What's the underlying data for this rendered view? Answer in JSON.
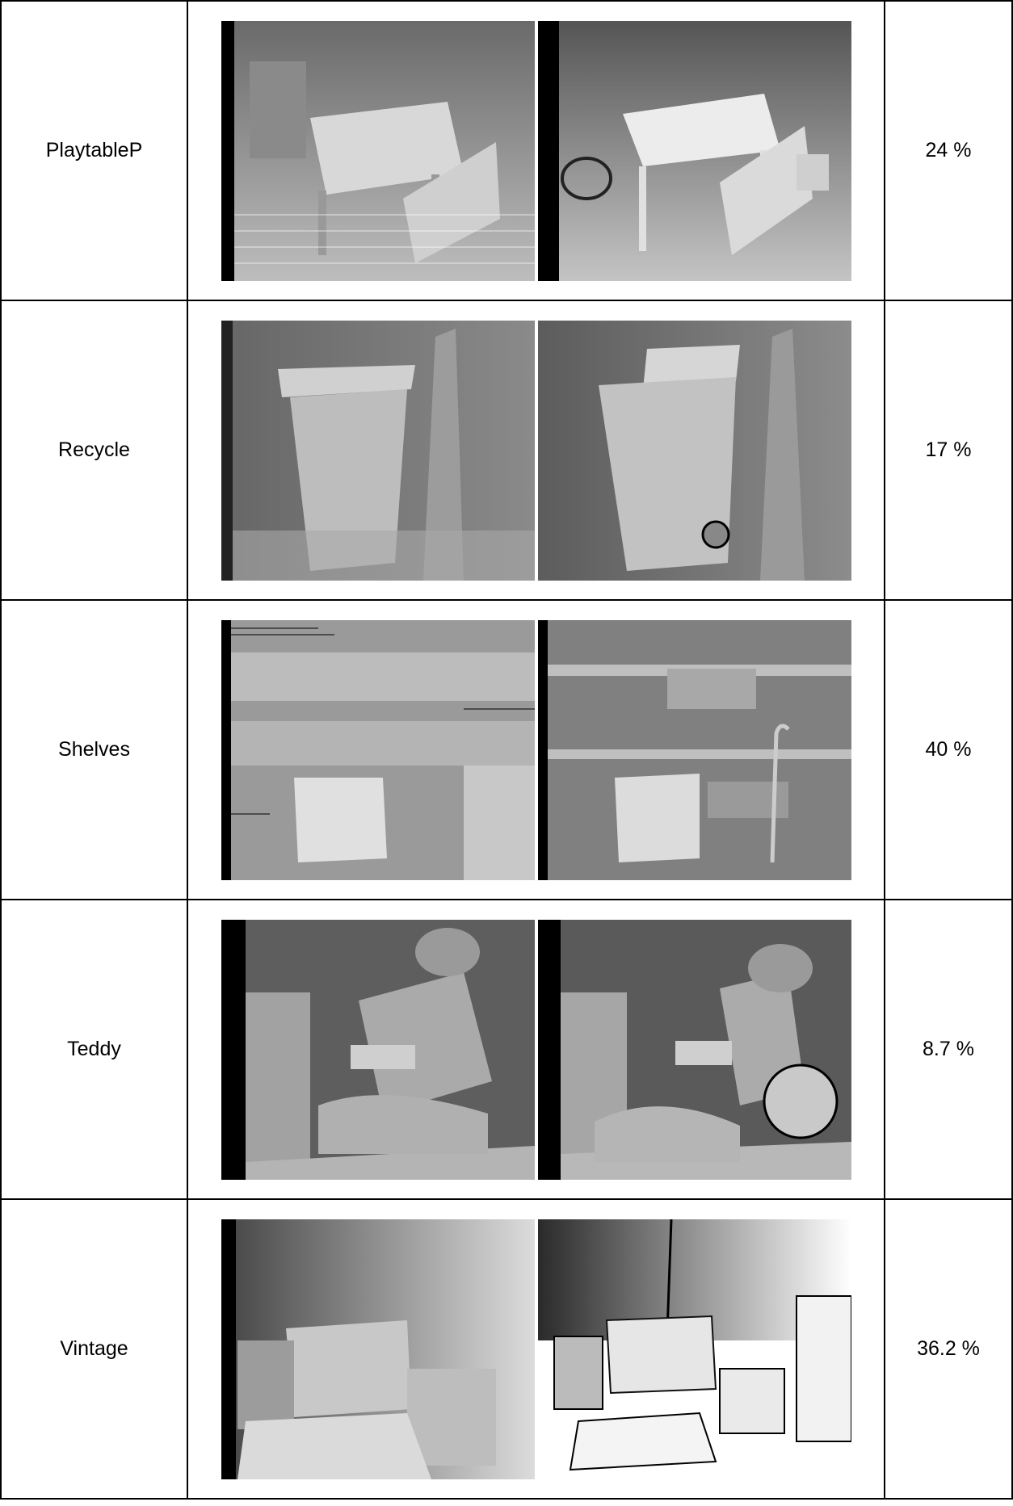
{
  "rows": [
    {
      "name": "PlaytableP",
      "percentage": "24 %",
      "left_icon": "depth-map-estimated",
      "right_icon": "depth-map-ground-truth"
    },
    {
      "name": "Recycle",
      "percentage": "17 %",
      "left_icon": "depth-map-estimated",
      "right_icon": "depth-map-ground-truth"
    },
    {
      "name": "Shelves",
      "percentage": "40 %",
      "left_icon": "depth-map-estimated",
      "right_icon": "depth-map-ground-truth"
    },
    {
      "name": "Teddy",
      "percentage": "8.7 %",
      "left_icon": "depth-map-estimated",
      "right_icon": "depth-map-ground-truth"
    },
    {
      "name": "Vintage",
      "percentage": "36.2 %",
      "left_icon": "depth-map-estimated",
      "right_icon": "depth-map-ground-truth"
    }
  ]
}
